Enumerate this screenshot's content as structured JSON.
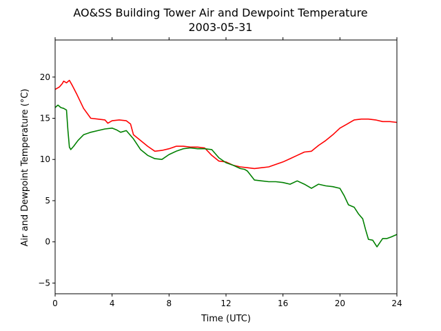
{
  "chart_data": {
    "type": "line",
    "title": "AO&SS Building Tower Air and Dewpoint Temperature",
    "subtitle": "2003-05-31",
    "xlabel": "Time (UTC)",
    "ylabel": "Air and Dewpoint Temperature (°C)",
    "xlim": [
      0,
      24
    ],
    "ylim": [
      -6.3,
      24.5
    ],
    "x_ticks": [
      0,
      4,
      8,
      12,
      16,
      20,
      24
    ],
    "y_ticks": [
      -5,
      0,
      5,
      10,
      15,
      20
    ],
    "grid": false,
    "series": [
      {
        "color": "#ff0000",
        "x": [
          0,
          0.3,
          0.5,
          0.6,
          0.8,
          1.0,
          1.2,
          1.5,
          2.0,
          2.5,
          3.0,
          3.5,
          3.7,
          4.0,
          4.5,
          5.0,
          5.3,
          5.5,
          6.0,
          6.5,
          7.0,
          7.5,
          8.0,
          8.5,
          9.0,
          9.5,
          10.0,
          10.5,
          11.0,
          11.5,
          12.0,
          12.5,
          13.0,
          13.5,
          14.0,
          14.5,
          15.0,
          15.5,
          16.0,
          16.5,
          17.0,
          17.5,
          18.0,
          18.5,
          19.0,
          19.5,
          20.0,
          20.5,
          21.0,
          21.5,
          22.0,
          22.5,
          23.0,
          23.5,
          24.0
        ],
        "y": [
          18.5,
          18.8,
          19.2,
          19.5,
          19.3,
          19.6,
          19.0,
          18.0,
          16.2,
          15.0,
          14.9,
          14.8,
          14.4,
          14.7,
          14.8,
          14.7,
          14.3,
          13.0,
          12.3,
          11.6,
          11.0,
          11.1,
          11.3,
          11.6,
          11.6,
          11.5,
          11.5,
          11.4,
          10.5,
          9.8,
          9.7,
          9.3,
          9.1,
          9.0,
          8.9,
          9.0,
          9.1,
          9.4,
          9.7,
          10.1,
          10.5,
          10.9,
          11.0,
          11.7,
          12.3,
          13.0,
          13.8,
          14.3,
          14.8,
          14.9,
          14.9,
          14.8,
          14.6,
          14.6,
          14.5
        ]
      },
      {
        "color": "#008000",
        "x": [
          0,
          0.2,
          0.4,
          0.6,
          0.8,
          0.9,
          1.0,
          1.1,
          1.3,
          1.6,
          2.0,
          2.5,
          3.0,
          3.5,
          4.0,
          4.3,
          4.6,
          5.0,
          5.5,
          6.0,
          6.5,
          7.0,
          7.5,
          8.0,
          8.5,
          9.0,
          9.5,
          10.0,
          10.5,
          11.0,
          11.5,
          12.0,
          12.5,
          13.0,
          13.3,
          13.5,
          14.0,
          14.5,
          15.0,
          15.5,
          16.0,
          16.5,
          17.0,
          17.5,
          18.0,
          18.5,
          19.0,
          19.5,
          20.0,
          20.3,
          20.6,
          21.0,
          21.3,
          21.6,
          21.8,
          22.0,
          22.3,
          22.6,
          23.0,
          23.3,
          23.6,
          24.0
        ],
        "y": [
          16.3,
          16.6,
          16.3,
          16.2,
          16.0,
          13.5,
          11.5,
          11.2,
          11.6,
          12.3,
          13.0,
          13.3,
          13.5,
          13.7,
          13.8,
          13.6,
          13.3,
          13.5,
          12.5,
          11.2,
          10.5,
          10.1,
          10.0,
          10.6,
          11.0,
          11.3,
          11.4,
          11.3,
          11.3,
          11.2,
          10.2,
          9.6,
          9.3,
          8.9,
          8.8,
          8.6,
          7.5,
          7.4,
          7.3,
          7.3,
          7.2,
          7.0,
          7.4,
          7.0,
          6.5,
          7.0,
          6.8,
          6.7,
          6.5,
          5.6,
          4.5,
          4.2,
          3.4,
          2.8,
          1.5,
          0.3,
          0.2,
          -0.6,
          0.4,
          0.4,
          0.6,
          0.9
        ]
      }
    ]
  }
}
